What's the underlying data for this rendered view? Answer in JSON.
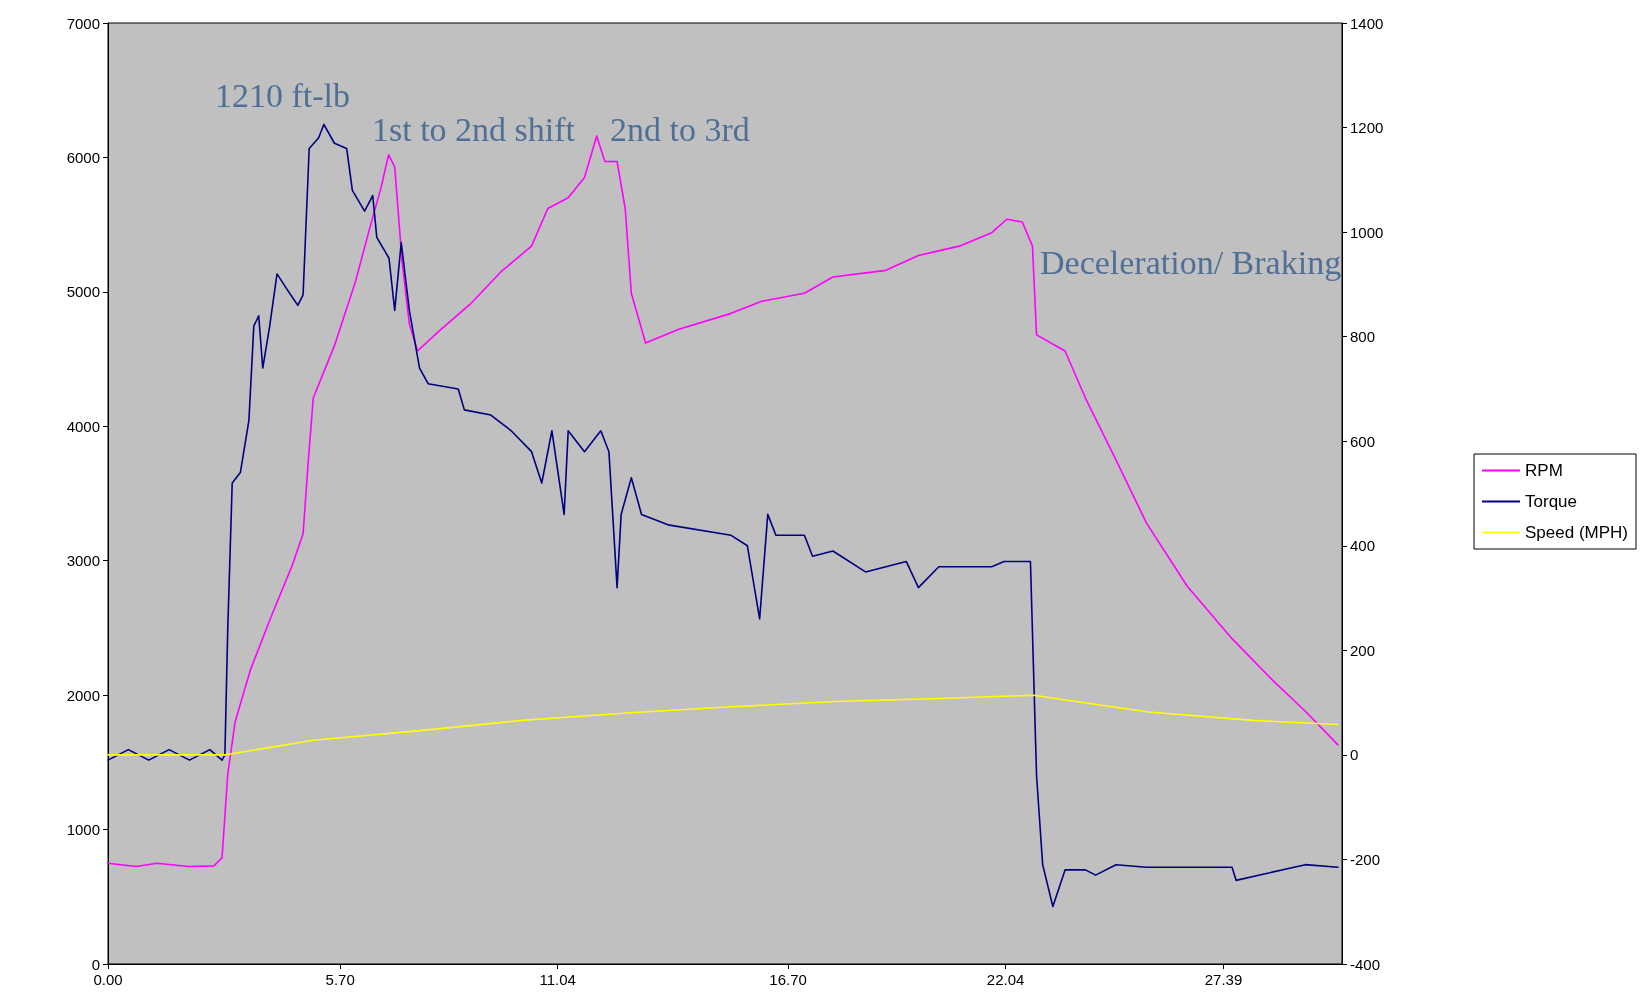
{
  "chart_data": {
    "type": "line",
    "xlim": [
      0,
      30.3
    ],
    "xticks": [
      {
        "value": 0,
        "label": "0.00"
      },
      {
        "value": 5.7,
        "label": "5.70"
      },
      {
        "value": 11.04,
        "label": "11.04"
      },
      {
        "value": 16.7,
        "label": "16.70"
      },
      {
        "value": 22.04,
        "label": "22.04"
      },
      {
        "value": 27.39,
        "label": "27.39"
      }
    ],
    "ylim": [
      0,
      7000
    ],
    "yticks": [
      0,
      1000,
      2000,
      3000,
      4000,
      5000,
      6000,
      7000
    ],
    "y2lim": [
      -400,
      1400
    ],
    "y2ticks": [
      -400,
      -200,
      0,
      200,
      400,
      600,
      800,
      1000,
      1200,
      1400
    ],
    "grid": false,
    "legend": "right",
    "marker": "none",
    "line_style": "solid",
    "annotations": [
      "1210 ft-lb",
      "1st to 2nd shift",
      "2nd to 3rd",
      "Deceleration/ Braking"
    ],
    "series": [
      {
        "name": "RPM",
        "color": "#ff00ff",
        "x": [
          0,
          0.69,
          1.2,
          1.97,
          2.6,
          2.8,
          2.94,
          3.12,
          3.5,
          4.0,
          4.53,
          4.79,
          4.92,
          5.04,
          5.56,
          6.07,
          6.45,
          6.7,
          6.89,
          7.04,
          7.22,
          7.4,
          7.6,
          8.1,
          8.9,
          9.65,
          10.4,
          10.8,
          11.3,
          11.7,
          12.0,
          12.2,
          12.5,
          12.7,
          12.85,
          13.2,
          14.0,
          15.3,
          16.05,
          17.1,
          17.8,
          19.1,
          19.9,
          20.9,
          21.7,
          22.07,
          22.45,
          22.7,
          22.8,
          23.5,
          24.0,
          24.75,
          25.5,
          26.5,
          27.6,
          28.6,
          29.4,
          30.2
        ],
        "values": [
          750,
          725,
          750,
          725,
          730,
          790,
          1410,
          1800,
          2190,
          2580,
          2970,
          3200,
          3750,
          4210,
          4600,
          5070,
          5500,
          5770,
          6020,
          5930,
          5230,
          4760,
          4560,
          4700,
          4910,
          5150,
          5340,
          5620,
          5700,
          5850,
          6160,
          5970,
          5970,
          5620,
          4990,
          4620,
          4720,
          4840,
          4930,
          4990,
          5110,
          5160,
          5270,
          5340,
          5440,
          5540,
          5520,
          5340,
          4680,
          4560,
          4210,
          3750,
          3280,
          2810,
          2420,
          2110,
          1880,
          1630
        ]
      },
      {
        "name": "Torque",
        "color": "#000080",
        "axis": "y2",
        "x": [
          0,
          0.5,
          1.0,
          1.5,
          2.0,
          2.5,
          2.8,
          2.87,
          2.94,
          3.05,
          3.25,
          3.46,
          3.58,
          3.7,
          3.8,
          3.97,
          4.15,
          4.4,
          4.66,
          4.79,
          4.94,
          5.17,
          5.3,
          5.56,
          5.86,
          6.0,
          6.3,
          6.5,
          6.6,
          6.9,
          7.04,
          7.2,
          7.4,
          7.65,
          7.86,
          8.6,
          8.75,
          9.4,
          9.9,
          10.4,
          10.65,
          10.9,
          11.2,
          11.3,
          11.7,
          12.1,
          12.3,
          12.5,
          12.6,
          12.85,
          13.1,
          13.75,
          15.3,
          15.7,
          16.0,
          16.2,
          16.4,
          17.1,
          17.3,
          17.8,
          18.6,
          19.6,
          19.9,
          20.4,
          21.7,
          22.0,
          22.65,
          22.8,
          22.95,
          23.2,
          23.5,
          24.0,
          24.25,
          24.75,
          25.5,
          27.6,
          27.7,
          29.4,
          30.2
        ],
        "values": [
          -10,
          10,
          -10,
          10,
          -10,
          10,
          -10,
          0,
          240,
          520,
          540,
          640,
          820,
          840,
          740,
          820,
          920,
          890,
          860,
          880,
          1160,
          1180,
          1206,
          1170,
          1160,
          1080,
          1040,
          1070,
          990,
          950,
          850,
          980,
          850,
          740,
          710,
          700,
          660,
          650,
          620,
          580,
          520,
          620,
          460,
          620,
          580,
          620,
          580,
          320,
          460,
          530,
          460,
          440,
          420,
          400,
          260,
          460,
          420,
          420,
          380,
          390,
          350,
          370,
          320,
          360,
          360,
          370,
          370,
          -40,
          -210,
          -290,
          -220,
          -220,
          -230,
          -210,
          -215,
          -215,
          -240,
          -210,
          -215
        ]
      },
      {
        "name": "Speed (MPH)",
        "color": "#ffff00",
        "axis": "y2",
        "x": [
          0,
          2.87,
          5.04,
          7.6,
          10.17,
          12.73,
          15.3,
          17.86,
          20.42,
          22.73,
          23.76,
          25.55,
          28.11,
          30.2
        ],
        "values": [
          0,
          0,
          28,
          46,
          66,
          80,
          92,
          102,
          108,
          114,
          102,
          82,
          66,
          58
        ]
      }
    ]
  }
}
